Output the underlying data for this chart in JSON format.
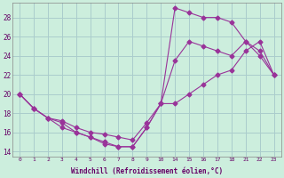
{
  "xlabel": "Windchill (Refroidissement éolien,°C)",
  "background_color": "#cceedd",
  "grid_color": "#aacccc",
  "line_color": "#993399",
  "ylim": [
    13.5,
    29.5
  ],
  "yticks": [
    14,
    16,
    18,
    20,
    22,
    24,
    26,
    28
  ],
  "x_labels": [
    "0",
    "1",
    "2",
    "3",
    "4",
    "5",
    "6",
    "7",
    "8",
    "9",
    "10",
    "14",
    "15",
    "16",
    "17",
    "18",
    "21",
    "22",
    "23"
  ],
  "series1_y": [
    20.0,
    18.5,
    17.5,
    17.0,
    16.0,
    15.5,
    15.0,
    14.5,
    14.5,
    16.5,
    19.0,
    29.0,
    28.5,
    28.0,
    28.0,
    27.5,
    25.5,
    24.0,
    22.0
  ],
  "series2_y": [
    20.0,
    18.5,
    17.5,
    16.5,
    16.0,
    15.5,
    14.8,
    14.5,
    14.5,
    16.5,
    19.0,
    23.5,
    25.5,
    25.0,
    24.5,
    24.0,
    25.5,
    24.5,
    22.0
  ],
  "series3_y": [
    20.0,
    18.5,
    17.5,
    17.2,
    16.5,
    16.0,
    15.8,
    15.5,
    15.2,
    17.0,
    19.0,
    19.0,
    20.0,
    21.0,
    22.0,
    22.5,
    24.5,
    25.5,
    22.0
  ]
}
